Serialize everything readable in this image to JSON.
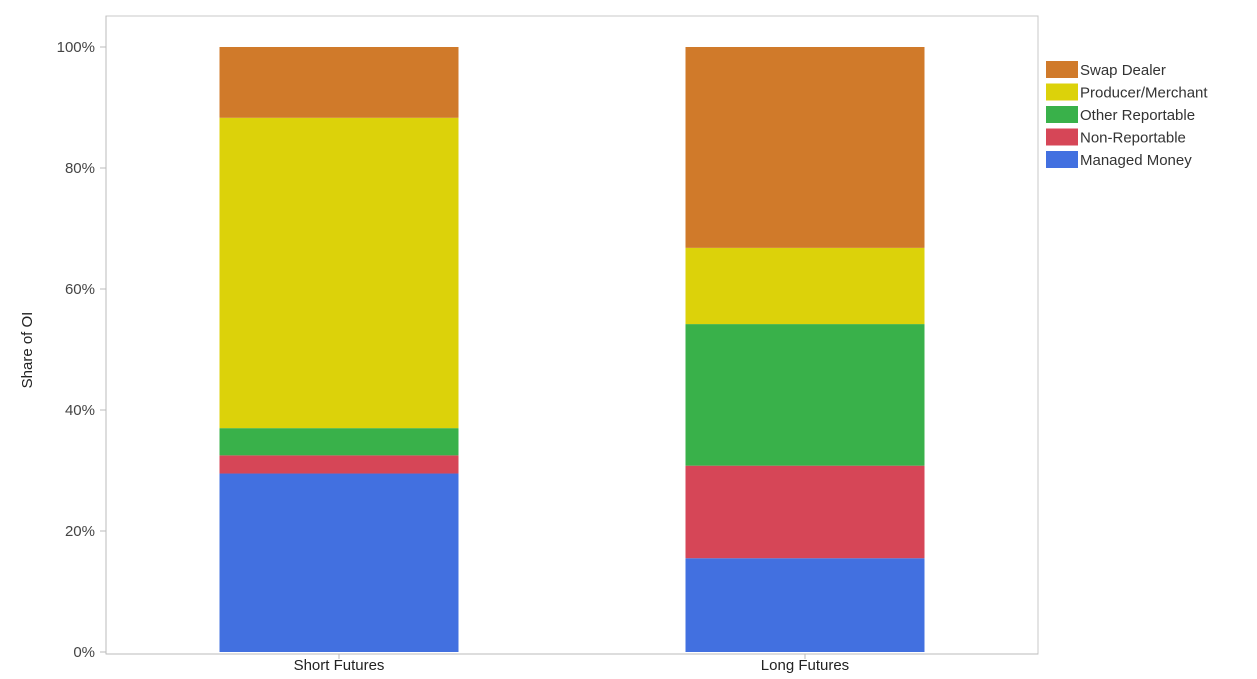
{
  "chart_data": {
    "type": "bar",
    "stacked": true,
    "categories": [
      "Short Futures",
      "Long Futures"
    ],
    "ylabel": "Share of OI",
    "xlabel": "",
    "ylim": [
      0,
      100
    ],
    "yticks": [
      "0%",
      "20%",
      "40%",
      "60%",
      "80%",
      "100%"
    ],
    "grid": false,
    "legend_position": "right",
    "series": [
      {
        "name": "Managed Money",
        "color": "#4270E0",
        "values": [
          29.5,
          15.5
        ]
      },
      {
        "name": "Non-Reportable",
        "color": "#D64657",
        "values": [
          3.0,
          15.3
        ]
      },
      {
        "name": "Other Reportable",
        "color": "#39B14A",
        "values": [
          4.5,
          23.4
        ]
      },
      {
        "name": "Producer/Merchant",
        "color": "#DCD20A",
        "values": [
          51.3,
          12.6
        ]
      },
      {
        "name": "Swap Dealer",
        "color": "#D07A2A",
        "values": [
          11.7,
          33.2
        ]
      }
    ],
    "legend_order": [
      "Swap Dealer",
      "Producer/Merchant",
      "Other Reportable",
      "Non-Reportable",
      "Managed Money"
    ]
  }
}
